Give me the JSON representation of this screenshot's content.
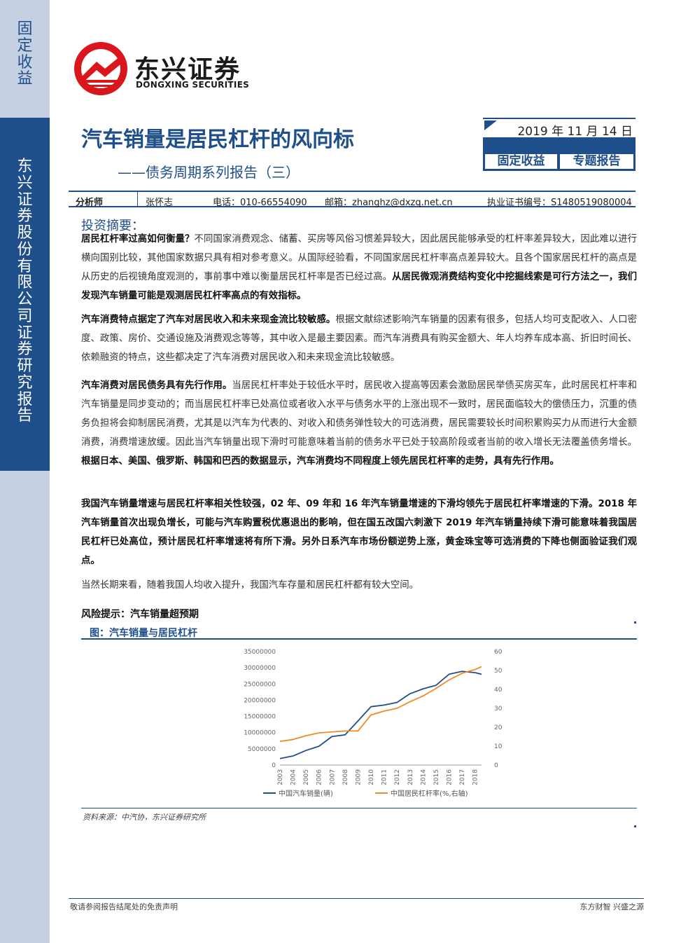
{
  "sidebar": {
    "category": "固定收益",
    "company_report": "东兴证券股份有限公司证券研究报告"
  },
  "logo": {
    "cn": "东兴证券",
    "en": "DONGXING SECURITIES"
  },
  "header": {
    "title": "汽车销量是居民杠杆的风向标",
    "subtitle": "——债务周期系列报告（三）",
    "date": "2019 年 11 月 14 日",
    "tag1": "固定收益",
    "tag2": "专题报告"
  },
  "analyst": {
    "label": "分析师",
    "name": "张怀志",
    "phone": "电话：010-66554090",
    "email": "邮箱：zhanghz@dxzq.net.cn",
    "license": "执业证书编号：S1480519080004"
  },
  "summary": {
    "heading": "投资摘要：",
    "p1_bold": "居民杠杆率过高如何衡量？",
    "p1_text": "不同国家消费观念、储蓄、买房等风俗习惯差异较大，因此居民能够承受的杠杆率差异较大，因此难以进行横向国别比较，其他国家数据只具有相对参考意义。从国际经验看，不同国家居民杠杆率高点差异较大。且各个国家居民杠杆的高点是从历史的后视镜角度观测的，事前事中难以衡量居民杠杆率是否已经过高。",
    "p1_bold2": "从居民微观消费结构变化中挖掘线索是可行方法之一，我们发现汽车销量可能是观测居民杠杆率高点的有效指标。",
    "p2_bold": "汽车消费特点据定了汽车对居民收入和未来现金流比较敏感。",
    "p2_text": "根据文献综述影响汽车销量的因素有很多，包括人均可支配收入、人口密度、政策、房价、交通设施及消费观念等等，其中收入是最主要因素。而汽车消费具有购买金额大、年人均养车成本高、折旧时间长、依赖融资的特点，这些都决定了汽车消费对居民收入和未来现金流比较敏感。",
    "p3_bold": "汽车消费对居民债务具有先行作用。",
    "p3_text": "当居民杠杆率处于较低水平时，居民收入提高等因素会激励居民举债买房买车，此时居民杠杆率和汽车销量是同步变动的；而当居民杠杆率已处高位或者收入水平与债务水平的上涨出现不一致时，居民面临较大的偿债压力，沉重的债务负担将会抑制居民消费，尤其是以汽车为代表的、对收入和债务弹性较大的可选消费，居民需要较长时间积累购买力从而进行大金额消费，消费增速放缓。因此当汽车销量出现下滑时可能意味着当前的债务水平已处于较高阶段或者当前的收入增长无法覆盖债务增长。",
    "p3_bold2": "根据日本、美国、俄罗斯、韩国和巴西的数据显示，汽车消费均不同程度上领先居民杠杆率的走势，具有先行作用。",
    "p4_bold": "我国汽车销量增速与居民杠杆率相关性较强，02 年、09 年和 16 年汽车销量增速的下滑均领先于居民杠杆率增速的下滑。2018 年汽车销量首次出现负增长，可能与汽车购置税优惠退出的影响，但在国五改国六刺激下 2019 年汽车销量持续下滑可能意味着我国居民杠杆已处高位，预计居民杠杆率增速将有所下滑。另外日系汽车市场份额逆势上涨，黄金珠宝等可选消费的下降也侧面验证我们观点。",
    "p5_text": "当然长期来看，随着我国人均收入提升，我国汽车存量和居民杠杆都有较大空间。"
  },
  "risk": "风险提示：汽车销量超预期",
  "figure_title": "图：汽车销量与居民杠杆",
  "source": "资料来源：中汽协，东兴证券研究所",
  "footer": {
    "left": "敬请参阅报告结尾处的免责声明",
    "right": "东方财智  兴盛之源"
  },
  "chart_data": {
    "type": "line",
    "x": [
      "2003",
      "2004",
      "2005",
      "2006",
      "2007",
      "2008",
      "2009",
      "2010",
      "2011",
      "2012",
      "2013",
      "2014",
      "2015",
      "2016",
      "2017",
      "2018"
    ],
    "xlabel": "",
    "y_left_ticks": [
      "0",
      "5000000",
      "10000000",
      "15000000",
      "20000000",
      "25000000",
      "30000000",
      "35000000"
    ],
    "y_right_ticks": [
      "0",
      "10",
      "20",
      "30",
      "40",
      "50",
      "60"
    ],
    "ylim_left": [
      0,
      35000000
    ],
    "ylim_right": [
      0,
      60
    ],
    "grid": false,
    "legend_position": "bottom",
    "series": [
      {
        "name": "中国汽车销量(辆)",
        "axis": "left",
        "color": "#1f4f8a",
        "x": [
          2003,
          2004,
          2005,
          2006,
          2007,
          2008,
          2009,
          2010,
          2011,
          2012,
          2013,
          2014,
          2015,
          2016,
          2017,
          2018,
          2018.5
        ],
        "values": [
          2000000,
          2800000,
          4500000,
          5800000,
          8800000,
          9300000,
          13600000,
          18000000,
          18500000,
          19300000,
          22000000,
          23500000,
          24600000,
          28000000,
          28900000,
          28500000,
          28000000
        ]
      },
      {
        "name": "中国居民杠杆率(%,右轴)",
        "axis": "right",
        "color": "#f08a24",
        "x": [
          2003,
          2004,
          2005,
          2006,
          2007,
          2008,
          2009,
          2010,
          2011,
          2012,
          2013,
          2014,
          2015,
          2016,
          2017,
          2018,
          2018.5
        ],
        "values": [
          12.5,
          13.5,
          15.5,
          17,
          17.5,
          18,
          18,
          26.5,
          28.5,
          30,
          33.5,
          36.5,
          40.5,
          45,
          48.5,
          50.5,
          52
        ]
      }
    ]
  }
}
